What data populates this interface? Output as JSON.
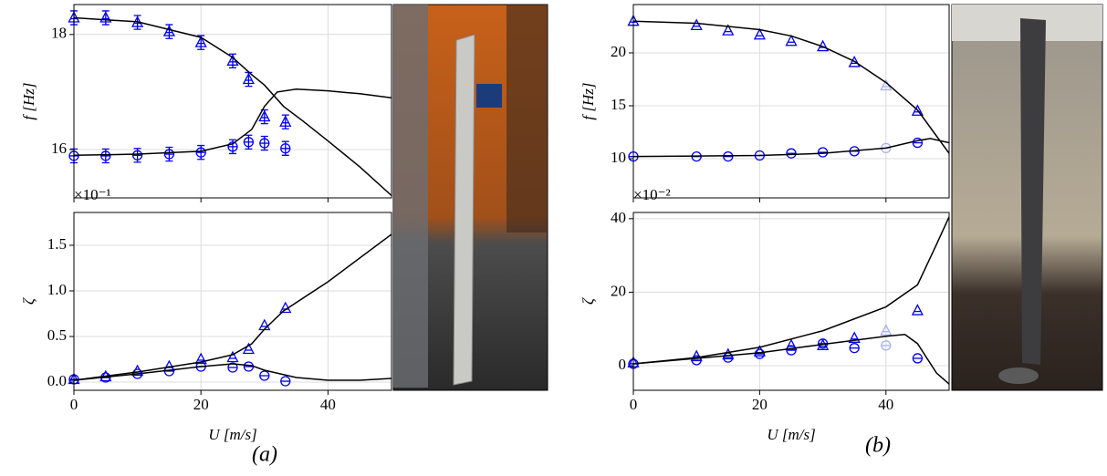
{
  "chart_data": [
    {
      "type": "line",
      "xlim": [
        0,
        50
      ],
      "xticks": [
        0,
        20,
        40
      ],
      "show_xtick_labels": false,
      "ylim": [
        15.16,
        18.52
      ],
      "yticks": [
        16,
        18
      ],
      "ylabel": "f [Hz]",
      "grid": true,
      "series": [
        {
          "marker": "triangle",
          "color": "#0000ee",
          "x": [
            0,
            5,
            10,
            15,
            20,
            25,
            27.5,
            30,
            33.3
          ],
          "values": [
            18.29,
            18.29,
            18.21,
            18.05,
            17.86,
            17.54,
            17.22,
            16.57,
            16.48
          ],
          "errors": [
            0.12,
            0.12,
            0.12,
            0.12,
            0.12,
            0.12,
            0.12,
            0.12,
            0.12
          ]
        },
        {
          "marker": "circle",
          "color": "#0000ee",
          "x": [
            0,
            5,
            10,
            15,
            20,
            25,
            27.5,
            30,
            33.3
          ],
          "values": [
            15.89,
            15.89,
            15.9,
            15.92,
            15.95,
            16.05,
            16.13,
            16.11,
            16.02
          ],
          "errors": [
            0.12,
            0.12,
            0.12,
            0.12,
            0.12,
            0.12,
            0.12,
            0.12,
            0.12
          ]
        },
        {
          "marker": "none",
          "color": "#000000",
          "x": [
            0,
            10,
            20,
            25,
            28,
            30,
            33,
            36,
            40,
            45,
            50
          ],
          "values": [
            18.29,
            18.22,
            17.95,
            17.6,
            17.3,
            17.12,
            16.75,
            16.5,
            16.15,
            15.7,
            15.2
          ]
        },
        {
          "marker": "none",
          "color": "#000000",
          "x": [
            0,
            10,
            20,
            25,
            28,
            30,
            32,
            35,
            40,
            45,
            50
          ],
          "values": [
            15.9,
            15.92,
            15.97,
            16.1,
            16.35,
            16.75,
            17.0,
            17.05,
            17.02,
            16.97,
            16.9
          ]
        }
      ]
    },
    {
      "type": "line",
      "xlim": [
        0,
        50
      ],
      "xticks": [
        0,
        20,
        40
      ],
      "show_xtick_labels": true,
      "xlabel": "U [m/s]",
      "ylim": [
        -0.09,
        1.86
      ],
      "yticks": [
        {
          "value": 0,
          "label": "0.0"
        },
        0.5,
        {
          "value": 1,
          "label": "1.0"
        },
        1.5
      ],
      "ylabel": "ζ",
      "scale_label": "×10⁻¹",
      "grid": true,
      "series": [
        {
          "marker": "triangle",
          "color": "#0000ee",
          "x": [
            0,
            5,
            10,
            15,
            20,
            25,
            27.5,
            30,
            33.3
          ],
          "values": [
            0.03,
            0.06,
            0.12,
            0.17,
            0.25,
            0.27,
            0.36,
            0.62,
            0.81
          ]
        },
        {
          "marker": "circle",
          "color": "#0000ee",
          "x": [
            0,
            5,
            10,
            15,
            20,
            25,
            27.5,
            30,
            33.3
          ],
          "values": [
            0.03,
            0.05,
            0.09,
            0.12,
            0.17,
            0.16,
            0.17,
            0.07,
            0.01
          ]
        },
        {
          "marker": "none",
          "color": "#000000",
          "x": [
            0,
            10,
            20,
            25,
            28,
            30,
            33,
            40,
            50
          ],
          "values": [
            0.02,
            0.11,
            0.22,
            0.3,
            0.42,
            0.58,
            0.78,
            1.1,
            1.62
          ]
        },
        {
          "marker": "none",
          "color": "#000000",
          "x": [
            0,
            10,
            20,
            25,
            28,
            30,
            35,
            40,
            45,
            50
          ],
          "values": [
            0.02,
            0.09,
            0.17,
            0.2,
            0.18,
            0.13,
            0.05,
            0.02,
            0.02,
            0.04
          ]
        }
      ]
    },
    {
      "type": "line",
      "xlim": [
        0,
        50
      ],
      "xticks": [
        0,
        20,
        40
      ],
      "show_xtick_labels": false,
      "ylim": [
        6.29,
        24.57
      ],
      "yticks": [
        10,
        15,
        20
      ],
      "ylabel": "f [Hz]",
      "grid": true,
      "series": [
        {
          "marker": "triangle",
          "color": "#0000ee",
          "x": [
            0,
            10,
            15,
            20,
            25,
            30,
            35,
            45
          ],
          "values": [
            23.0,
            22.6,
            22.1,
            21.7,
            21.1,
            20.6,
            19.1,
            14.5
          ]
        },
        {
          "marker": "triangle",
          "color": "#a8b0f5",
          "x": [
            40
          ],
          "values": [
            16.9
          ]
        },
        {
          "marker": "circle",
          "color": "#0000ee",
          "x": [
            0,
            10,
            15,
            20,
            25,
            30,
            35,
            45
          ],
          "values": [
            10.2,
            10.2,
            10.2,
            10.3,
            10.5,
            10.6,
            10.7,
            11.5
          ]
        },
        {
          "marker": "circle",
          "color": "#a8b0f5",
          "x": [
            40
          ],
          "values": [
            11.0
          ]
        },
        {
          "marker": "none",
          "color": "#000000",
          "x": [
            0,
            10,
            20,
            25,
            30,
            35,
            40,
            45,
            50
          ],
          "values": [
            23.0,
            22.8,
            22.2,
            21.6,
            20.6,
            19.2,
            17.2,
            14.6,
            10.5
          ]
        },
        {
          "marker": "none",
          "color": "#000000",
          "x": [
            0,
            20,
            30,
            40,
            45,
            47,
            50
          ],
          "values": [
            10.2,
            10.3,
            10.5,
            11.0,
            11.7,
            11.9,
            11.5
          ]
        }
      ]
    },
    {
      "type": "line",
      "xlim": [
        0,
        50
      ],
      "xticks": [
        0,
        20,
        40
      ],
      "show_xtick_labels": true,
      "xlabel": "U [m/s]",
      "ylim": [
        -6.7,
        41.7
      ],
      "yticks": [
        0,
        20,
        40
      ],
      "ylabel": "ζ",
      "scale_label": "×10⁻²",
      "grid": true,
      "series": [
        {
          "marker": "triangle",
          "color": "#0000ee",
          "x": [
            0,
            10,
            15,
            20,
            25,
            30,
            35,
            45
          ],
          "values": [
            0.8,
            2.5,
            3,
            3.8,
            5.5,
            5.5,
            7.5,
            15
          ]
        },
        {
          "marker": "triangle",
          "color": "#a8b0f5",
          "x": [
            40
          ],
          "values": [
            9.5
          ]
        },
        {
          "marker": "circle",
          "color": "#0000ee",
          "x": [
            0,
            10,
            15,
            20,
            25,
            30,
            35,
            45
          ],
          "values": [
            0.5,
            1.5,
            2.2,
            3.2,
            4.2,
            6,
            4.8,
            2
          ]
        },
        {
          "marker": "circle",
          "color": "#a8b0f5",
          "x": [
            40
          ],
          "values": [
            5.5
          ]
        },
        {
          "marker": "none",
          "color": "#000000",
          "x": [
            0,
            10,
            20,
            30,
            40,
            45,
            48,
            50
          ],
          "values": [
            0.5,
            2.2,
            5,
            9.5,
            16,
            22,
            33,
            40.5
          ]
        },
        {
          "marker": "none",
          "color": "#000000",
          "x": [
            0,
            10,
            20,
            30,
            40,
            43,
            45,
            48,
            50
          ],
          "values": [
            0.5,
            2,
            3.5,
            5.8,
            8,
            8.5,
            6,
            -2,
            -5
          ]
        }
      ]
    }
  ],
  "captions": [
    "(a)",
    "(b)"
  ]
}
